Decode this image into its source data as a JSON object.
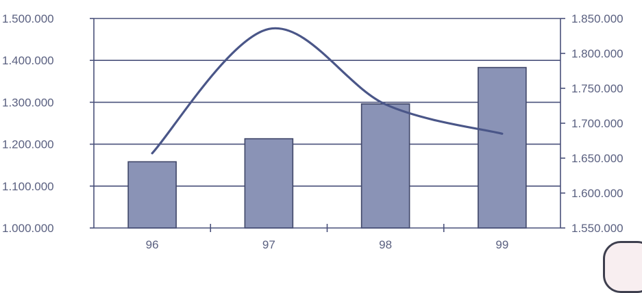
{
  "chart_data": {
    "type": "bar+line",
    "title": "",
    "categories": [
      "96",
      "97",
      "98",
      "99"
    ],
    "y_left": {
      "ylim": [
        1000000,
        1500000
      ],
      "ticks": [
        1000000,
        1100000,
        1200000,
        1300000,
        1400000,
        1500000
      ],
      "tick_labels": [
        "1.000.000",
        "1.100.000",
        "1.200.000",
        "1.300.000",
        "1.400.000",
        "1.500.000"
      ]
    },
    "y_right": {
      "ylim": [
        1550000,
        1850000
      ],
      "ticks": [
        1550000,
        1600000,
        1650000,
        1700000,
        1750000,
        1800000,
        1850000
      ],
      "tick_labels": [
        "1.550.000",
        "1.600.000",
        "1.650.000",
        "1.700.000",
        "1.750.000",
        "1.800.000",
        "1.850.000"
      ]
    },
    "series": [
      {
        "type": "bar",
        "axis": "left",
        "values": [
          1158000,
          1213000,
          1296000,
          1383000
        ]
      },
      {
        "type": "line",
        "axis": "right",
        "smooth": true,
        "values": [
          1657000,
          1835000,
          1727000,
          1685000
        ]
      }
    ],
    "grid": true,
    "legend": "none"
  }
}
